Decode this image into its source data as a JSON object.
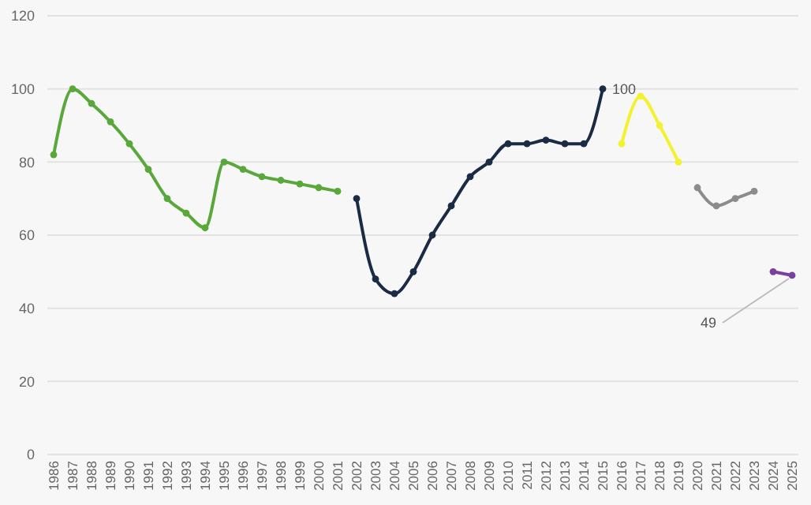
{
  "chart_data": {
    "type": "line",
    "categories": [
      "1986",
      "1987",
      "1988",
      "1989",
      "1990",
      "1991",
      "1992",
      "1993",
      "1994",
      "1995",
      "1996",
      "1997",
      "1998",
      "1999",
      "2000",
      "2001",
      "2002",
      "2003",
      "2004",
      "2005",
      "2006",
      "2007",
      "2008",
      "2009",
      "2010",
      "2011",
      "2012",
      "2013",
      "2014",
      "2015",
      "2016",
      "2017",
      "2018",
      "2019",
      "2020",
      "2021",
      "2022",
      "2023",
      "2024",
      "2025"
    ],
    "ylim": [
      0,
      120
    ],
    "yticks": [
      0,
      20,
      40,
      60,
      80,
      100,
      120
    ],
    "grid": "y",
    "marker": "circle",
    "line_style": "solid",
    "series": [
      {
        "color": "#5aa83c",
        "values": [
          82,
          100,
          96,
          91,
          85,
          78,
          70,
          66,
          62,
          80,
          78,
          76,
          75,
          74,
          73,
          72,
          null,
          null,
          null,
          null,
          null,
          null,
          null,
          null,
          null,
          null,
          null,
          null,
          null,
          null,
          null,
          null,
          null,
          null,
          null,
          null,
          null,
          null,
          null,
          null
        ]
      },
      {
        "color": "#1c2b44",
        "values": [
          null,
          null,
          null,
          null,
          null,
          null,
          null,
          null,
          null,
          null,
          null,
          null,
          null,
          null,
          null,
          null,
          70,
          48,
          44,
          50,
          60,
          68,
          76,
          80,
          85,
          85,
          86,
          85,
          85,
          100,
          null,
          null,
          null,
          null,
          null,
          null,
          null,
          null,
          null,
          null
        ]
      },
      {
        "color": "#f2f230",
        "values": [
          null,
          null,
          null,
          null,
          null,
          null,
          null,
          null,
          null,
          null,
          null,
          null,
          null,
          null,
          null,
          null,
          null,
          null,
          null,
          null,
          null,
          null,
          null,
          null,
          null,
          null,
          null,
          null,
          null,
          null,
          85,
          98,
          90,
          80,
          null,
          null,
          null,
          null,
          null,
          null
        ]
      },
      {
        "color": "#8c8c8c",
        "values": [
          null,
          null,
          null,
          null,
          null,
          null,
          null,
          null,
          null,
          null,
          null,
          null,
          null,
          null,
          null,
          null,
          null,
          null,
          null,
          null,
          null,
          null,
          null,
          null,
          null,
          null,
          null,
          null,
          null,
          null,
          null,
          null,
          null,
          null,
          73,
          68,
          70,
          72,
          null,
          null
        ]
      },
      {
        "color": "#7b3fa0",
        "values": [
          null,
          null,
          null,
          null,
          null,
          null,
          null,
          null,
          null,
          null,
          null,
          null,
          null,
          null,
          null,
          null,
          null,
          null,
          null,
          null,
          null,
          null,
          null,
          null,
          null,
          null,
          null,
          null,
          null,
          null,
          null,
          null,
          null,
          null,
          null,
          null,
          null,
          null,
          50,
          49
        ]
      }
    ],
    "annotations": [
      {
        "text": "100",
        "x": "2015",
        "y": 100
      },
      {
        "text": "49",
        "x": "2025",
        "y": 49
      }
    ]
  }
}
